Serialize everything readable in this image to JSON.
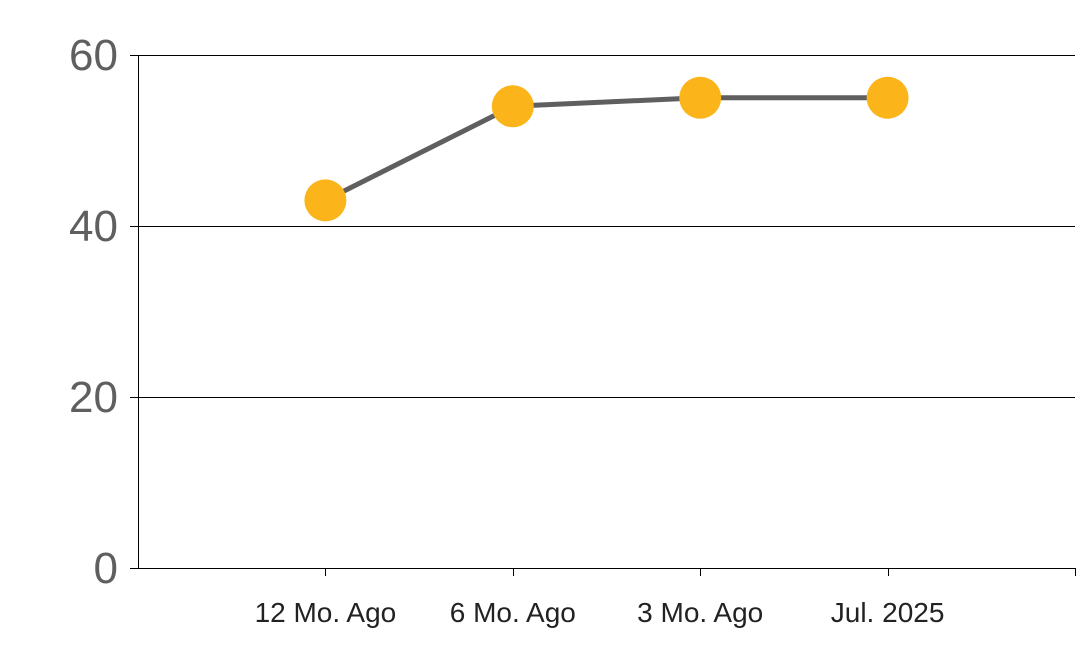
{
  "chart_data": {
    "type": "line",
    "title": "",
    "xlabel": "",
    "ylabel": "",
    "categories": [
      "12 Mo. Ago",
      "6 Mo. Ago",
      "3 Mo. Ago",
      "Jul. 2025"
    ],
    "series": [
      {
        "values": [
          43,
          54,
          55,
          55
        ],
        "line_color": "#5f5f5f",
        "marker_color": "#fbb51a"
      }
    ],
    "ylim": [
      0,
      60
    ],
    "y_ticks": [
      0,
      20,
      40,
      60
    ],
    "y_tick_labels": [
      "0",
      "20",
      "40",
      "60"
    ],
    "grid": true,
    "legend": "none"
  },
  "colors": {
    "axis_text": "#5f5f5f",
    "category_text": "#222222",
    "gridline": "#000000"
  }
}
